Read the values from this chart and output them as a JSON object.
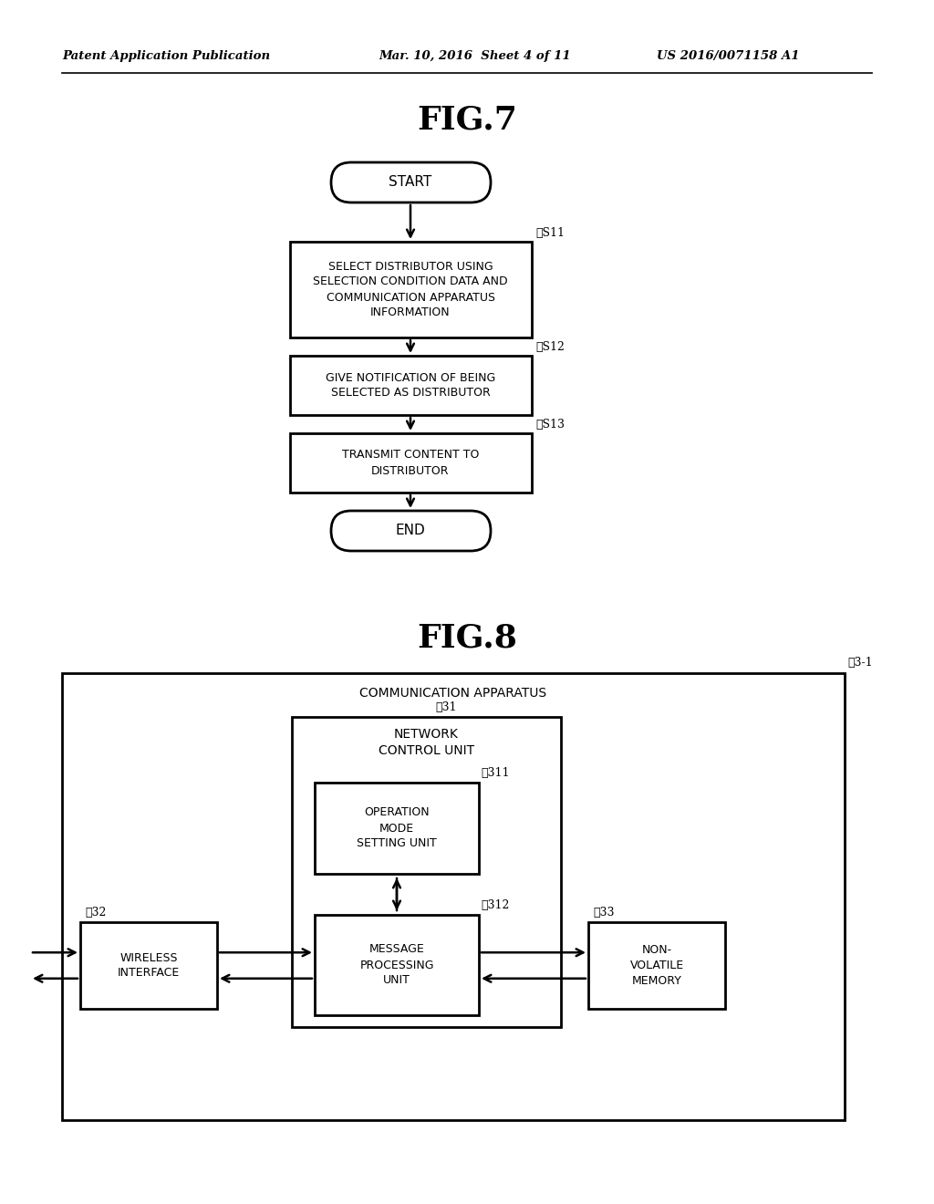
{
  "bg_color": "#ffffff",
  "header_left": "Patent Application Publication",
  "header_mid": "Mar. 10, 2016  Sheet 4 of 11",
  "header_right": "US 2016/0071158 A1",
  "fig7_title": "FIG.7",
  "fig8_title": "FIG.8",
  "flowchart": {
    "start_label": "START",
    "end_label": "END",
    "steps": [
      {
        "label": "SELECT DISTRIBUTOR USING\nSELECTION CONDITION DATA AND\nCOMMUNICATION APPARATUS\nINFORMATION",
        "tag": "S11"
      },
      {
        "label": "GIVE NOTIFICATION OF BEING\nSELECTED AS DISTRIBUTOR",
        "tag": "S12"
      },
      {
        "label": "TRANSMIT CONTENT TO\nDISTRIBUTOR",
        "tag": "S13"
      }
    ]
  },
  "block_diagram": {
    "outer_label": "COMMUNICATION APPARATUS",
    "outer_tag": "3-1",
    "network_tag": "31",
    "network_label": "NETWORK\nCONTROL UNIT",
    "op_tag": "311",
    "op_label": "OPERATION\nMODE\nSETTING UNIT",
    "msg_tag": "312",
    "msg_label": "MESSAGE\nPROCESSING\nUNIT",
    "wifi_tag": "32",
    "wifi_label": "WIRELESS\nINTERFACE",
    "mem_tag": "33",
    "mem_label": "NON-\nVOLATILE\nMEMORY"
  }
}
